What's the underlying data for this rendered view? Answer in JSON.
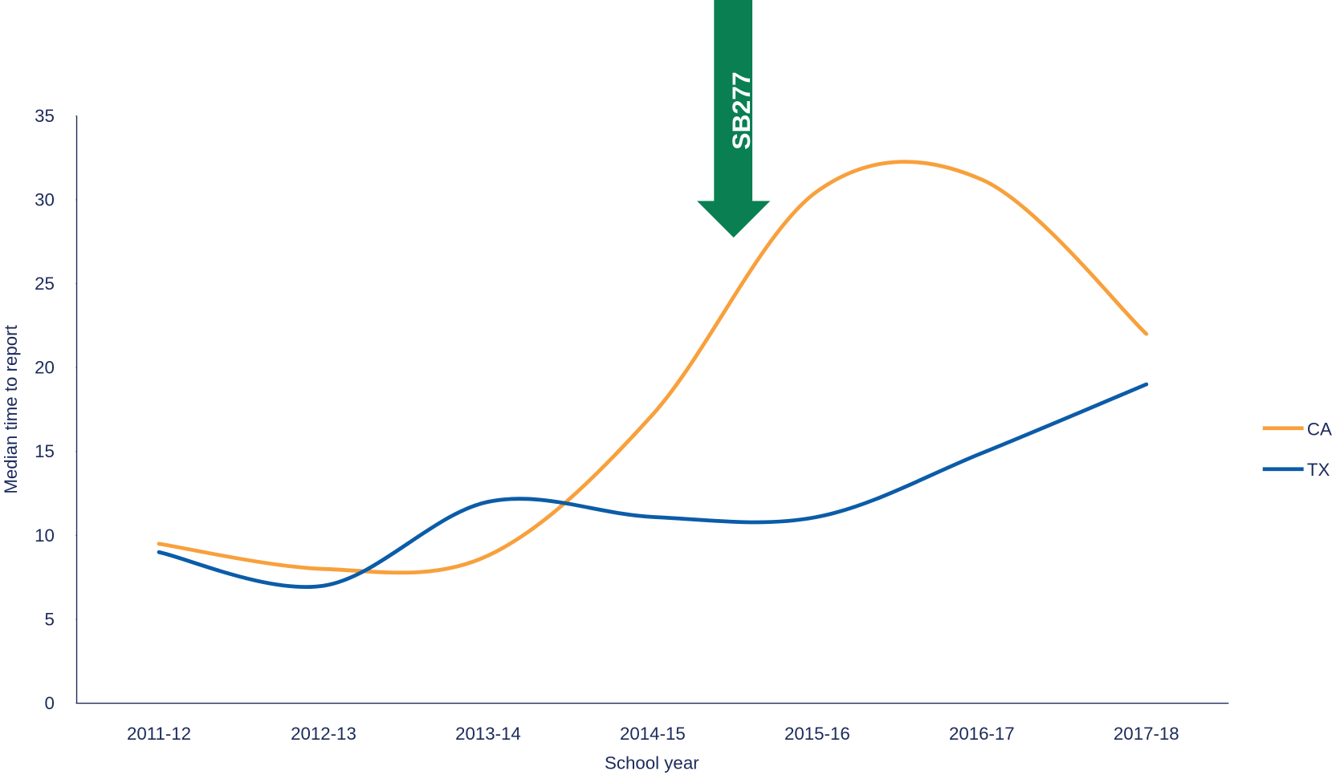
{
  "chart_data": {
    "type": "line",
    "annotation": "SB277",
    "xlabel": "School year",
    "ylabel": "Median time to report",
    "categories": [
      "2011-12",
      "2012-13",
      "2013-14",
      "2014-15",
      "2015-16",
      "2016-17",
      "2017-18"
    ],
    "series": [
      {
        "name": "CA",
        "color": "#f8a03c",
        "values": [
          9.5,
          8,
          8.8,
          17.2,
          30.5,
          31.2,
          22
        ]
      },
      {
        "name": "TX",
        "color": "#0b5ca8",
        "values": [
          9,
          7,
          12,
          11.1,
          11.1,
          14.9,
          19
        ]
      }
    ],
    "ylim": [
      0,
      35
    ],
    "yticks": [
      0,
      5,
      10,
      15,
      20,
      25,
      30,
      35
    ],
    "legend": "right",
    "smooth": true
  }
}
